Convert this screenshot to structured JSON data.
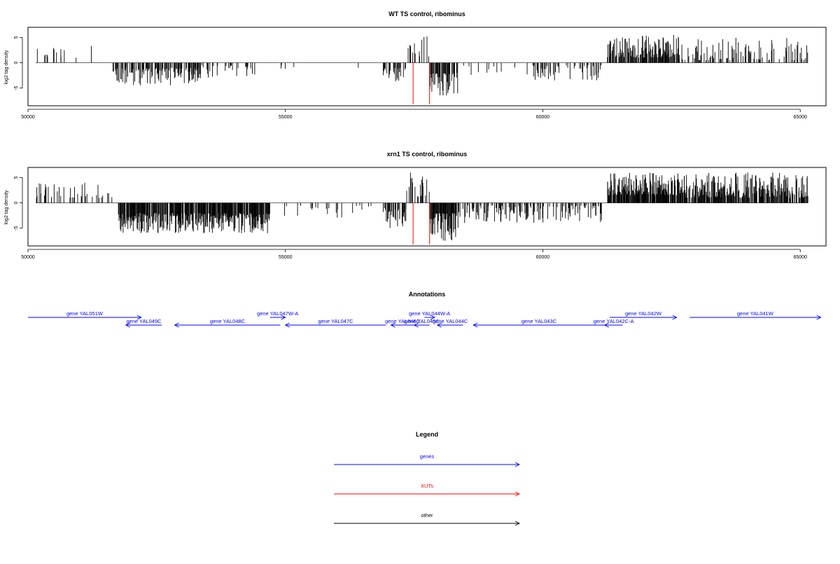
{
  "colors": {
    "genes": "#0000ff",
    "xuts": "#ff0000",
    "other": "#000000",
    "frame": "#000000"
  },
  "chart_data": [
    {
      "type": "bar",
      "title": "WT TS control, ribominus",
      "xlabel": "",
      "ylabel": "log2 tag density",
      "xlim": [
        50000,
        65500
      ],
      "ylim": [
        -8.5,
        7
      ],
      "xticks": [
        50000,
        55000,
        60000,
        65000
      ],
      "yticks": [
        -5,
        0,
        5
      ],
      "grid": false,
      "regions": [
        {
          "from": 50150,
          "to": 51350,
          "density": 0.08,
          "sign": 1,
          "min": 1,
          "max": 4,
          "seed": 11
        },
        {
          "from": 51650,
          "to": 53350,
          "density": 0.45,
          "sign": -1,
          "min": 1,
          "max": 4.5,
          "seed": 12
        },
        {
          "from": 53350,
          "to": 54400,
          "density": 0.18,
          "sign": -1,
          "min": 0.5,
          "max": 3,
          "seed": 13
        },
        {
          "from": 54400,
          "to": 56900,
          "density": 0.04,
          "sign": -1,
          "min": 0.5,
          "max": 2.5,
          "seed": 14
        },
        {
          "from": 56900,
          "to": 57350,
          "density": 0.4,
          "sign": -1,
          "min": 1,
          "max": 4,
          "seed": 15
        },
        {
          "from": 57350,
          "to": 57800,
          "density": 0.2,
          "sign": 1,
          "min": 1,
          "max": 5.5,
          "seed": 16
        },
        {
          "from": 57800,
          "to": 58350,
          "density": 0.6,
          "sign": -1,
          "min": 2,
          "max": 6.5,
          "seed": 17
        },
        {
          "from": 58350,
          "to": 59800,
          "density": 0.05,
          "sign": -1,
          "min": 0.5,
          "max": 2.5,
          "seed": 18
        },
        {
          "from": 59800,
          "to": 61150,
          "density": 0.25,
          "sign": -1,
          "min": 0.5,
          "max": 3.5,
          "seed": 19
        },
        {
          "from": 61250,
          "to": 62650,
          "density": 0.7,
          "sign": 1,
          "min": 1,
          "max": 5.5,
          "seed": 20
        },
        {
          "from": 62650,
          "to": 65150,
          "density": 0.3,
          "sign": 1,
          "min": 0.5,
          "max": 5,
          "seed": 21
        }
      ],
      "xuts": [
        {
          "x": 57480,
          "y": -8.2
        },
        {
          "x": 57800,
          "y": -8.2
        }
      ]
    },
    {
      "type": "bar",
      "title": "xrn1 TS control, ribominus",
      "xlabel": "",
      "ylabel": "log2 tag density",
      "xlim": [
        50000,
        65500
      ],
      "ylim": [
        -8.5,
        7
      ],
      "xticks": [
        50000,
        55000,
        60000,
        65000
      ],
      "yticks": [
        -5,
        0,
        5
      ],
      "grid": false,
      "regions": [
        {
          "from": 50150,
          "to": 51650,
          "density": 0.22,
          "sign": 1,
          "min": 1,
          "max": 4,
          "seed": 31
        },
        {
          "from": 51750,
          "to": 54700,
          "density": 0.8,
          "sign": -1,
          "min": 2,
          "max": 6,
          "seed": 32
        },
        {
          "from": 54700,
          "to": 56900,
          "density": 0.08,
          "sign": -1,
          "min": 0.5,
          "max": 3,
          "seed": 33
        },
        {
          "from": 56900,
          "to": 57350,
          "density": 0.55,
          "sign": -1,
          "min": 1,
          "max": 5,
          "seed": 34
        },
        {
          "from": 57350,
          "to": 57800,
          "density": 0.35,
          "sign": 1,
          "min": 1,
          "max": 6,
          "seed": 35
        },
        {
          "from": 57800,
          "to": 58350,
          "density": 0.85,
          "sign": -1,
          "min": 2,
          "max": 7.5,
          "seed": 36
        },
        {
          "from": 58350,
          "to": 61150,
          "density": 0.35,
          "sign": -1,
          "min": 0.5,
          "max": 4,
          "seed": 37
        },
        {
          "from": 61250,
          "to": 62700,
          "density": 0.9,
          "sign": 1,
          "min": 1.5,
          "max": 6,
          "seed": 38
        },
        {
          "from": 62700,
          "to": 65150,
          "density": 0.75,
          "sign": 1,
          "min": 1,
          "max": 6,
          "seed": 39
        }
      ],
      "xuts": [
        {
          "x": 57480,
          "y": -8.2
        },
        {
          "x": 57800,
          "y": -8.2
        }
      ]
    }
  ],
  "annotations": {
    "title": "Annotations",
    "genes": [
      {
        "label": "gene YAL051W",
        "x0": 50000,
        "x1": 52200,
        "row": 0,
        "dir": "right"
      },
      {
        "label": "gene YAL049C",
        "x0": 51900,
        "x1": 52600,
        "row": 1,
        "dir": "left"
      },
      {
        "label": "gene YAL048C",
        "x0": 52850,
        "x1": 54900,
        "row": 1,
        "dir": "left"
      },
      {
        "label": "gene YAL047W-A",
        "x0": 54700,
        "x1": 55000,
        "row": 0,
        "dir": "right"
      },
      {
        "label": "gene YAL047C",
        "x0": 55000,
        "x1": 56950,
        "row": 1,
        "dir": "left"
      },
      {
        "label": "gene YAL046C",
        "x0": 57050,
        "x1": 57500,
        "row": 1,
        "dir": "left"
      },
      {
        "label": "gene YAL044W-A",
        "x0": 57700,
        "x1": 57900,
        "row": 0,
        "dir": "right"
      },
      {
        "label": "gene YAL045C",
        "x0": 57500,
        "x1": 57800,
        "row": 1,
        "dir": "left"
      },
      {
        "label": "gene YAL044C",
        "x0": 57950,
        "x1": 58450,
        "row": 1,
        "dir": "left"
      },
      {
        "label": "gene YAL043C",
        "x0": 58650,
        "x1": 61200,
        "row": 1,
        "dir": "left"
      },
      {
        "label": "gene YAL042C-A",
        "x0": 61200,
        "x1": 61550,
        "row": 1,
        "dir": "left"
      },
      {
        "label": "gene YAL042W",
        "x0": 61300,
        "x1": 62600,
        "row": 0,
        "dir": "right"
      },
      {
        "label": "gene YAL041W",
        "x0": 62850,
        "x1": 65400,
        "row": 0,
        "dir": "right"
      }
    ]
  },
  "legend": {
    "title": "Legend",
    "items": [
      {
        "label": "genes",
        "color": "#0000ff"
      },
      {
        "label": "XUTs",
        "color": "#ff0000"
      },
      {
        "label": "other",
        "color": "#000000"
      }
    ]
  }
}
